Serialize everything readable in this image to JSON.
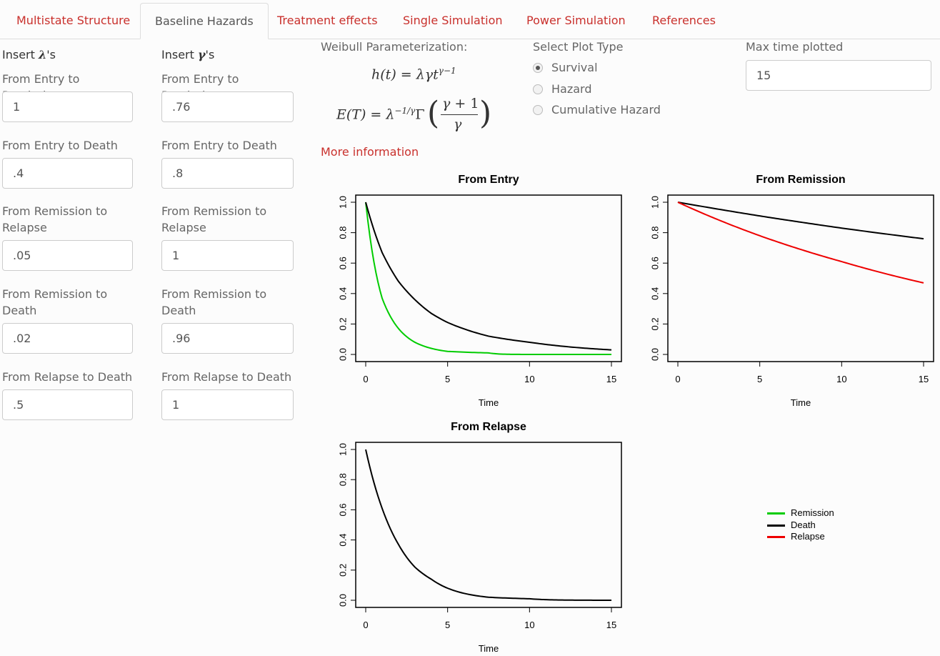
{
  "tabs": [
    {
      "label": "Multistate Structure",
      "active": false
    },
    {
      "label": "Baseline Hazards",
      "active": true
    },
    {
      "label": "Treatment effects",
      "active": false
    },
    {
      "label": "Single Simulation",
      "active": false
    },
    {
      "label": "Power Simulation",
      "active": false
    },
    {
      "label": "References",
      "active": false
    }
  ],
  "lambda": {
    "header_prefix": "Insert ",
    "header_symbol": "λ",
    "header_suffix": "'s",
    "fields": [
      {
        "label": "From Entry to Remission",
        "value": "1"
      },
      {
        "label": "From Entry to Death",
        "value": ".4"
      },
      {
        "label": "From Remission to Relapse",
        "value": ".05"
      },
      {
        "label": "From Remission to Death",
        "value": ".02"
      },
      {
        "label": "From Relapse to Death",
        "value": ".5"
      }
    ]
  },
  "gamma": {
    "header_prefix": "Insert ",
    "header_symbol": "γ",
    "header_suffix": "'s",
    "fields": [
      {
        "label": "From Entry to Remission",
        "value": ".76"
      },
      {
        "label": "From Entry to Death",
        "value": ".8"
      },
      {
        "label": "From Remission to Relapse",
        "value": "1"
      },
      {
        "label": "From Remission to Death",
        "value": ".96"
      },
      {
        "label": "From Relapse to Death",
        "value": "1"
      }
    ]
  },
  "weibull": {
    "title": "Weibull Parameterization:",
    "hazard_formula": "h(t) = λγt^(γ−1)",
    "expectation_formula": "E(T) = λ^(−1/γ) Γ((γ+1)/γ)",
    "more_link": "More information"
  },
  "plot_type": {
    "title": "Select Plot Type",
    "options": [
      "Survival",
      "Hazard",
      "Cumulative Hazard"
    ],
    "selected": "Survival"
  },
  "max_time": {
    "title": "Max time plotted",
    "value": "15"
  },
  "colors": {
    "remission": "#00cc00",
    "death": "#000000",
    "relapse": "#ee0000",
    "link": "#c9302c"
  },
  "chart_data": [
    {
      "type": "line",
      "title": "From Entry",
      "xlabel": "Time",
      "ylabel": "",
      "xlim": [
        0,
        15
      ],
      "ylim": [
        0,
        1
      ],
      "xticks": [
        "0",
        "5",
        "10",
        "15"
      ],
      "yticks": [
        "0.0",
        "0.2",
        "0.4",
        "0.6",
        "0.8",
        "1.0"
      ],
      "x": [
        0,
        1,
        2,
        3,
        4,
        5,
        7.5,
        10,
        15
      ],
      "series": [
        {
          "name": "Remission",
          "color": "#00cc00",
          "values": [
            1.0,
            0.37,
            0.17,
            0.08,
            0.04,
            0.02,
            0.01,
            0.0,
            0.0
          ]
        },
        {
          "name": "Death",
          "color": "#000000",
          "values": [
            1.0,
            0.67,
            0.48,
            0.36,
            0.27,
            0.21,
            0.12,
            0.08,
            0.03
          ]
        }
      ]
    },
    {
      "type": "line",
      "title": "From Remission",
      "xlabel": "Time",
      "ylabel": "",
      "xlim": [
        0,
        15
      ],
      "ylim": [
        0,
        1
      ],
      "xticks": [
        "0",
        "5",
        "10",
        "15"
      ],
      "yticks": [
        "0.0",
        "0.2",
        "0.4",
        "0.6",
        "0.8",
        "1.0"
      ],
      "x": [
        0,
        5,
        10,
        15
      ],
      "series": [
        {
          "name": "Death",
          "color": "#000000",
          "values": [
            1.0,
            0.91,
            0.83,
            0.76
          ]
        },
        {
          "name": "Relapse",
          "color": "#ee0000",
          "values": [
            1.0,
            0.78,
            0.61,
            0.47
          ]
        }
      ]
    },
    {
      "type": "line",
      "title": "From Relapse",
      "xlabel": "Time",
      "ylabel": "",
      "xlim": [
        0,
        15
      ],
      "ylim": [
        0,
        1
      ],
      "xticks": [
        "0",
        "5",
        "10",
        "15"
      ],
      "yticks": [
        "0.0",
        "0.2",
        "0.4",
        "0.6",
        "0.8",
        "1.0"
      ],
      "x": [
        0,
        1,
        2,
        3,
        4,
        5,
        7.5,
        10,
        15
      ],
      "series": [
        {
          "name": "Death",
          "color": "#000000",
          "values": [
            1.0,
            0.61,
            0.37,
            0.22,
            0.14,
            0.08,
            0.02,
            0.01,
            0.0
          ]
        }
      ]
    }
  ],
  "legend": [
    {
      "label": "Remission",
      "color": "#00cc00"
    },
    {
      "label": "Death",
      "color": "#000000"
    },
    {
      "label": "Relapse",
      "color": "#ee0000"
    }
  ]
}
